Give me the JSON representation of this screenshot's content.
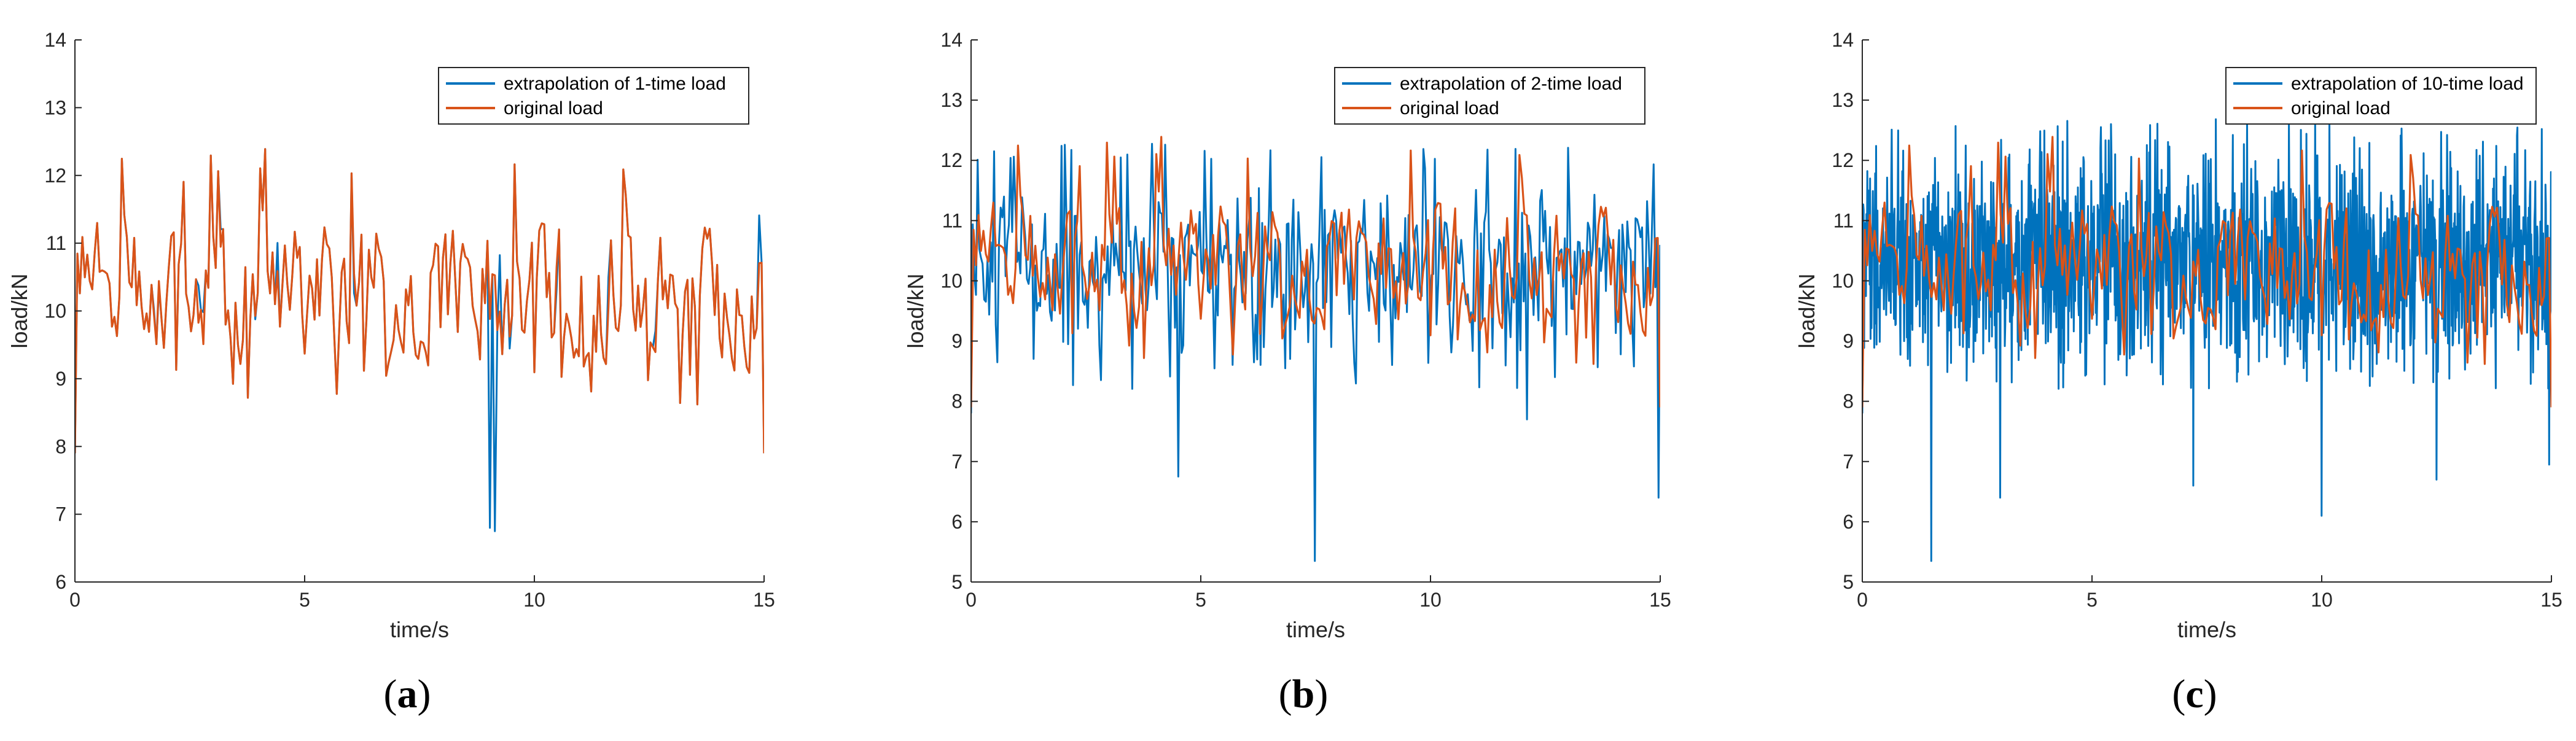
{
  "colors": {
    "series_extrapolation": "#0072BD",
    "series_original": "#D95319",
    "axis": "#262626"
  },
  "chart_data": [
    {
      "type": "line",
      "panel": "a",
      "caption_open": "(",
      "caption_letter": "a",
      "caption_close": ")",
      "xlabel": "time/s",
      "ylabel": "load/kN",
      "xlim": [
        0,
        15
      ],
      "ylim": [
        6,
        14
      ],
      "xticks": [
        0,
        5,
        10,
        15
      ],
      "yticks": [
        6,
        7,
        8,
        9,
        10,
        11,
        12,
        13,
        14
      ],
      "legend_position": "top-right",
      "series": [
        {
          "name": "extrapolation of 1-time load",
          "color": "#0072BD",
          "points": 280,
          "seed": 11,
          "source": "original",
          "spike_prob": 0.05,
          "noise": 0.6,
          "extra_dips": [
            [
              9.05,
              6.8
            ],
            [
              9.15,
              6.75
            ]
          ]
        },
        {
          "name": "original load",
          "color": "#D95319",
          "points": 280,
          "seed": 7,
          "source": "original"
        }
      ]
    },
    {
      "type": "line",
      "panel": "b",
      "caption_open": "(",
      "caption_letter": "b",
      "caption_close": ")",
      "xlabel": "time/s",
      "ylabel": "load/kN",
      "xlim": [
        0,
        15
      ],
      "ylim": [
        5,
        14
      ],
      "xticks": [
        0,
        5,
        10,
        15
      ],
      "yticks": [
        5,
        6,
        7,
        8,
        9,
        10,
        11,
        12,
        13,
        14
      ],
      "legend_position": "top-right",
      "series": [
        {
          "name": "extrapolation of 2-time load",
          "color": "#0072BD",
          "points": 420,
          "seed": 23,
          "source": "noisy",
          "amp": 0.9,
          "extra_dips": [
            [
              4.5,
              6.75
            ],
            [
              7.5,
              5.35
            ],
            [
              12.1,
              7.7
            ],
            [
              14.95,
              6.4
            ]
          ]
        },
        {
          "name": "original load",
          "color": "#D95319",
          "points": 280,
          "seed": 7,
          "source": "original"
        }
      ]
    },
    {
      "type": "line",
      "panel": "c",
      "caption_open": "(",
      "caption_letter": "c",
      "caption_close": ")",
      "xlabel": "time/s",
      "ylabel": "load/kN",
      "xlim": [
        0,
        15
      ],
      "ylim": [
        5,
        14
      ],
      "xticks": [
        0,
        5,
        10,
        15
      ],
      "yticks": [
        5,
        6,
        7,
        8,
        9,
        10,
        11,
        12,
        13,
        14
      ],
      "legend_position": "top-right",
      "series": [
        {
          "name": "extrapolation of 10-time load",
          "color": "#0072BD",
          "points": 1500,
          "seed": 41,
          "source": "dense",
          "amp": 1.2,
          "extra_dips": [
            [
              1.5,
              5.35
            ],
            [
              3.0,
              6.4
            ],
            [
              7.2,
              6.6
            ],
            [
              10.0,
              6.1
            ],
            [
              12.5,
              6.7
            ],
            [
              14.95,
              6.95
            ]
          ]
        },
        {
          "name": "original load",
          "color": "#D95319",
          "points": 280,
          "seed": 7,
          "source": "original"
        }
      ]
    }
  ]
}
